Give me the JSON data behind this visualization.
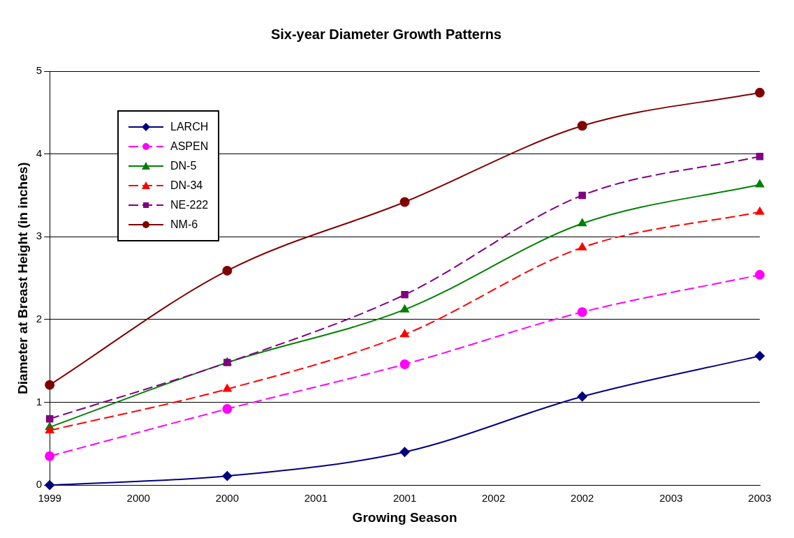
{
  "chart_data": {
    "type": "line",
    "title": "Six-year Diameter Growth Patterns",
    "xlabel": "Growing Season",
    "ylabel": "Diameter at Breast Height (in inches)",
    "x": [
      1999,
      2000,
      2001,
      2002,
      2003
    ],
    "xlim": [
      1999,
      2003
    ],
    "xticks": [
      1999,
      {
        "value": 1999.5,
        "label": "2000"
      },
      2000,
      {
        "value": 2000.5,
        "label": "2001"
      },
      2001,
      {
        "value": 2001.5,
        "label": "2002"
      },
      2002,
      {
        "value": 2002.5,
        "label": "2003"
      },
      2003
    ],
    "ylim": [
      0,
      5
    ],
    "yticks": [
      0,
      1,
      2,
      3,
      4,
      5
    ],
    "grid": "y",
    "legend": "top left",
    "series": [
      {
        "name": "LARCH",
        "color": "#000080",
        "values": [
          0,
          0.11,
          0.4,
          1.07,
          1.56
        ],
        "marker": "diamond",
        "line_style": "solid"
      },
      {
        "name": "ASPEN",
        "color": "#ff00ff",
        "values": [
          0.35,
          0.92,
          1.46,
          2.09,
          2.54
        ],
        "marker": "circle",
        "line_style": "dashed"
      },
      {
        "name": "DN-5",
        "color": "#008000",
        "values": [
          0.7,
          1.48,
          2.12,
          3.16,
          3.63
        ],
        "marker": "triangle",
        "line_style": "solid"
      },
      {
        "name": "DN-34",
        "color": "#ff0000",
        "values": [
          0.66,
          1.16,
          1.82,
          2.87,
          3.3
        ],
        "marker": "triangle",
        "line_style": "dashed"
      },
      {
        "name": "NE-222",
        "color": "#800080",
        "values": [
          0.8,
          1.48,
          2.3,
          3.5,
          3.97
        ],
        "marker": "square",
        "line_style": "dashed"
      },
      {
        "name": "NM-6",
        "color": "#800000",
        "values": [
          1.21,
          2.59,
          3.42,
          4.34,
          4.74
        ],
        "marker": "circle",
        "line_style": "solid"
      }
    ]
  }
}
